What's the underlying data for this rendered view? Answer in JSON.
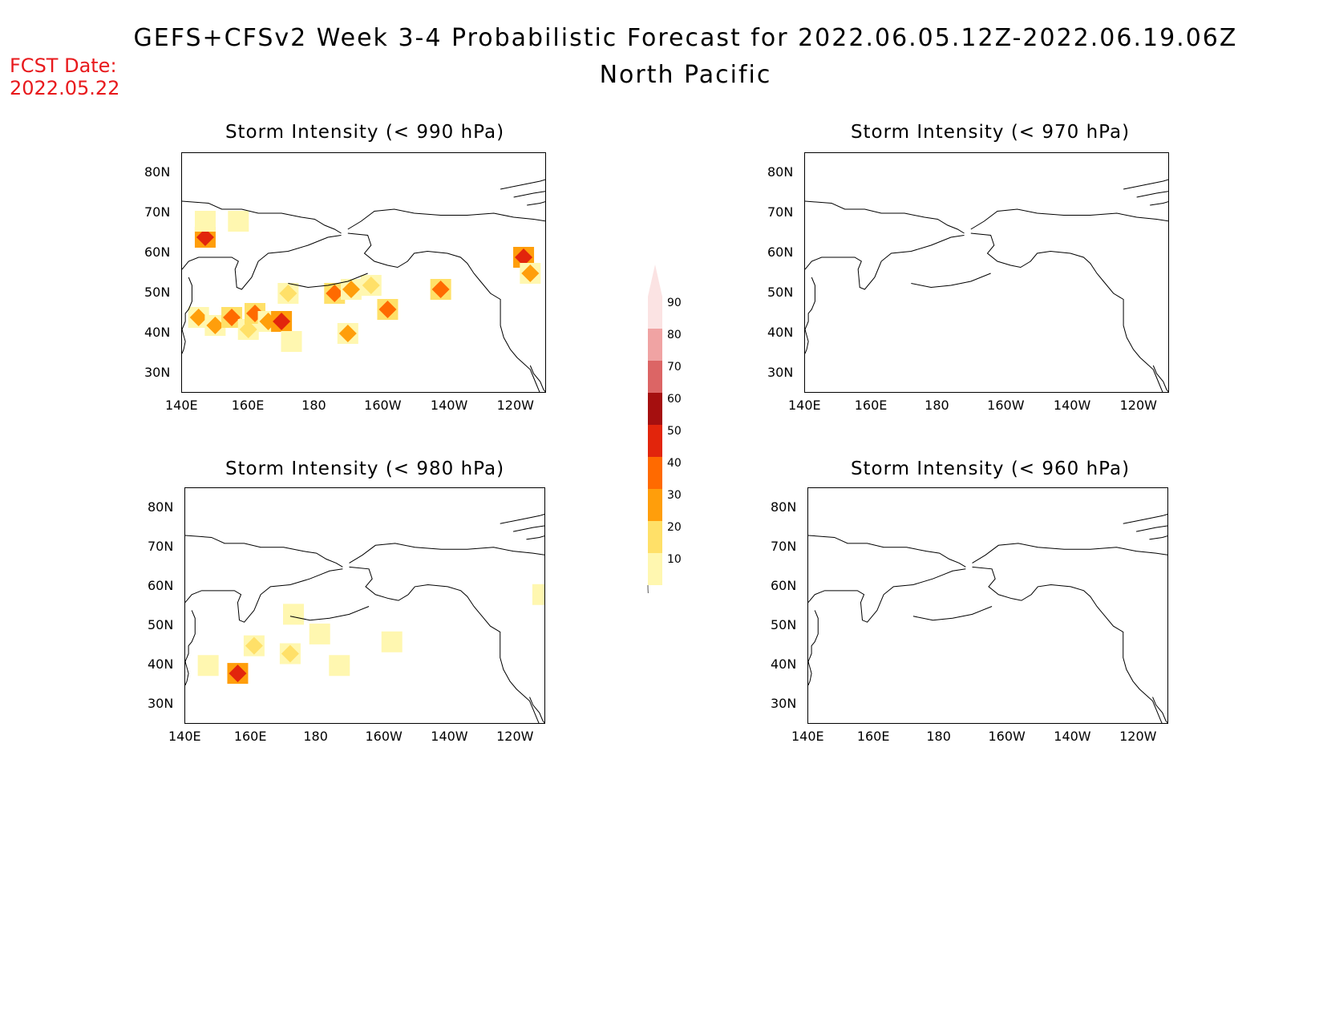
{
  "title": "GEFS+CFSv2 Week 3-4 Probabilistic Forecast for 2022.06.05.12Z-2022.06.19.06Z",
  "subtitle": "North Pacific",
  "fcst_label": "FCST Date:",
  "fcst_date": "2022.05.22",
  "colors": {
    "fcst_text": "#e8191c"
  },
  "lon_ticks": [
    "140E",
    "160E",
    "180",
    "160W",
    "140W",
    "120W"
  ],
  "lat_ticks": [
    "80N",
    "70N",
    "60N",
    "50N",
    "40N",
    "30N"
  ],
  "panels": [
    {
      "title": "Storm Intensity (< 990 hPa)"
    },
    {
      "title": "Storm Intensity (< 970 hPa)"
    },
    {
      "title": "Storm Intensity (< 980 hPa)"
    },
    {
      "title": "Storm Intensity (< 960 hPa)"
    }
  ],
  "colorbar": {
    "labels": [
      "90",
      "80",
      "70",
      "60",
      "50",
      "40",
      "30",
      "20",
      "10"
    ],
    "colors": [
      "#fbe3e3",
      "#f0a3a3",
      "#dc6565",
      "#a50f0f",
      "#e2250c",
      "#ff6a00",
      "#ff9e0b",
      "#ffe068",
      "#fff7b0"
    ]
  },
  "chart_data": {
    "type": "heatmap",
    "legend_placement": "center-vertical",
    "value_bins": [
      10,
      20,
      30,
      40,
      50,
      60,
      70,
      80,
      90
    ],
    "lon_range": [
      "140E",
      "110W"
    ],
    "lat_range": [
      "25N",
      "85N"
    ],
    "maps": [
      {
        "title": "Storm Intensity (< 990 hPa)",
        "cells": [
          {
            "lon": 147,
            "lat": 64,
            "value": 50
          },
          {
            "lon": 147,
            "lat": 68,
            "value": 15
          },
          {
            "lon": 157,
            "lat": 68,
            "value": 15
          },
          {
            "lon": 145,
            "lat": 44,
            "value": 35
          },
          {
            "lon": 150,
            "lat": 42,
            "value": 30
          },
          {
            "lon": 155,
            "lat": 44,
            "value": 40
          },
          {
            "lon": 160,
            "lat": 41,
            "value": 25
          },
          {
            "lon": 162,
            "lat": 45,
            "value": 40
          },
          {
            "lon": 166,
            "lat": 43,
            "value": 30
          },
          {
            "lon": 170,
            "lat": 43,
            "value": 55
          },
          {
            "lon": 172,
            "lat": 50,
            "value": 25
          },
          {
            "lon": 173,
            "lat": 38,
            "value": 15
          },
          {
            "lon": 186,
            "lat": 50,
            "value": 45
          },
          {
            "lon": 191,
            "lat": 51,
            "value": 30
          },
          {
            "lon": 197,
            "lat": 52,
            "value": 20
          },
          {
            "lon": 202,
            "lat": 46,
            "value": 40
          },
          {
            "lon": 190,
            "lat": 40,
            "value": 35
          },
          {
            "lon": 218,
            "lat": 51,
            "value": 40
          },
          {
            "lon": 243,
            "lat": 59,
            "value": 55
          },
          {
            "lon": 245,
            "lat": 55,
            "value": 30
          }
        ]
      },
      {
        "title": "Storm Intensity (< 970 hPa)",
        "cells": []
      },
      {
        "title": "Storm Intensity (< 980 hPa)",
        "cells": [
          {
            "lon": 156,
            "lat": 38,
            "value": 50
          },
          {
            "lon": 161,
            "lat": 45,
            "value": 25
          },
          {
            "lon": 172,
            "lat": 43,
            "value": 20
          },
          {
            "lon": 173,
            "lat": 53,
            "value": 15
          },
          {
            "lon": 181,
            "lat": 48,
            "value": 15
          },
          {
            "lon": 187,
            "lat": 40,
            "value": 15
          },
          {
            "lon": 203,
            "lat": 46,
            "value": 15
          },
          {
            "lon": 147,
            "lat": 40,
            "value": 15
          },
          {
            "lon": 249,
            "lat": 58,
            "value": 15
          }
        ]
      },
      {
        "title": "Storm Intensity (< 960 hPa)",
        "cells": []
      }
    ]
  }
}
